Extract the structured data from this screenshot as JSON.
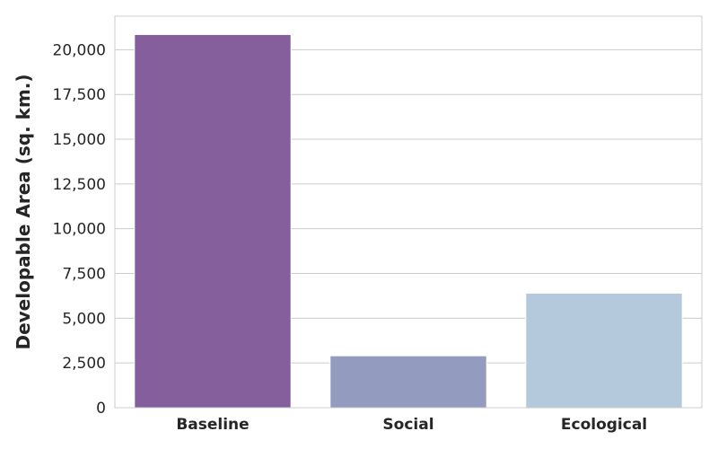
{
  "chart_data": {
    "type": "bar",
    "categories": [
      "Baseline",
      "Social",
      "Ecological"
    ],
    "values": [
      20850,
      2900,
      6400
    ],
    "colors": [
      "#855f9c",
      "#939bbf",
      "#b5c9dc"
    ],
    "title": "",
    "xlabel": "",
    "ylabel": "Developable Area (sq. km.)",
    "ylim": [
      0,
      21875
    ],
    "yticks": [
      0,
      2500,
      5000,
      7500,
      10000,
      12500,
      15000,
      17500,
      20000
    ],
    "ytick_labels": [
      "0",
      "2,500",
      "5,000",
      "7,500",
      "10,000",
      "12,500",
      "15,000",
      "17,500",
      "20,000"
    ],
    "grid": "horizontal",
    "legend": "none"
  }
}
